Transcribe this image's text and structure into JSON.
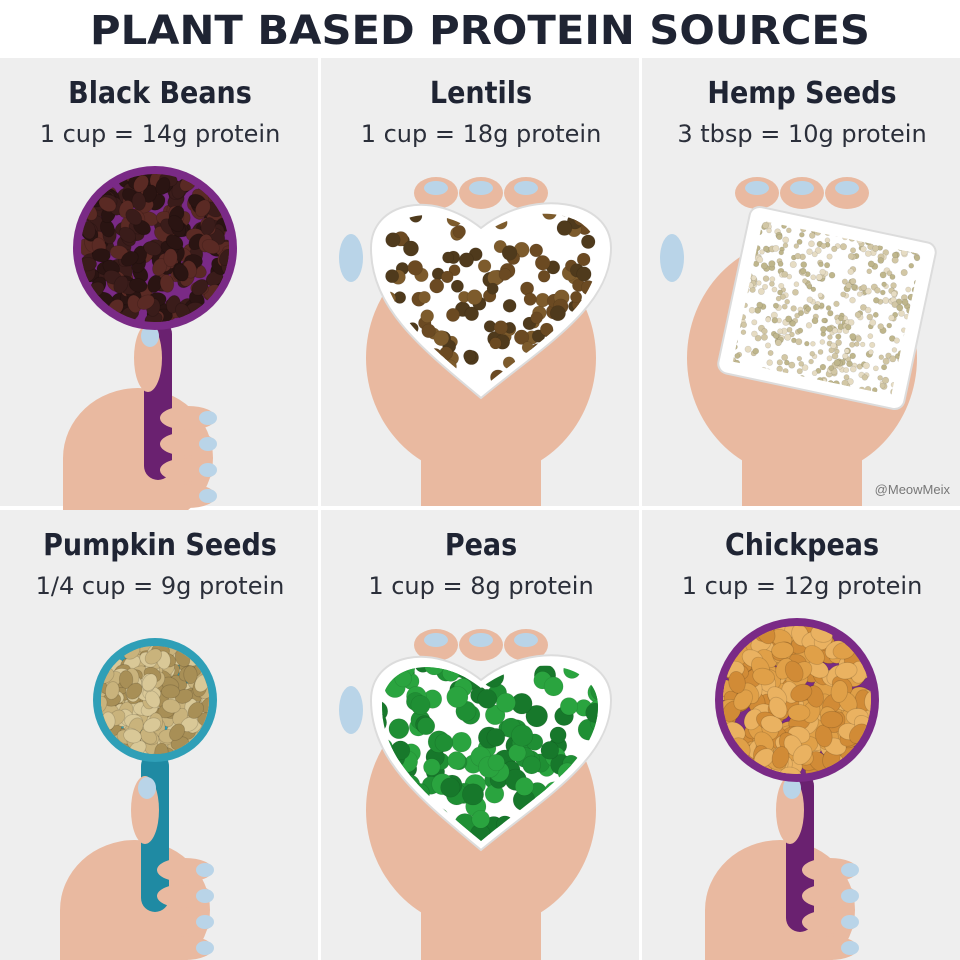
{
  "title": "PLANT BASED PROTEIN SOURCES",
  "items": [
    {
      "name": "Black Beans",
      "amount": "1 cup = 14g protein"
    },
    {
      "name": "Lentils",
      "amount": "1 cup = 18g protein"
    },
    {
      "name": "Hemp Seeds",
      "amount": "3 tbsp = 10g protein"
    },
    {
      "name": "Pumpkin Seeds",
      "amount": "1/4 cup = 9g protein"
    },
    {
      "name": "Peas",
      "amount": "1 cup = 8g protein"
    },
    {
      "name": "Chickpeas",
      "amount": "1 cup = 12g protein"
    }
  ],
  "watermark": "@MeowMeix"
}
